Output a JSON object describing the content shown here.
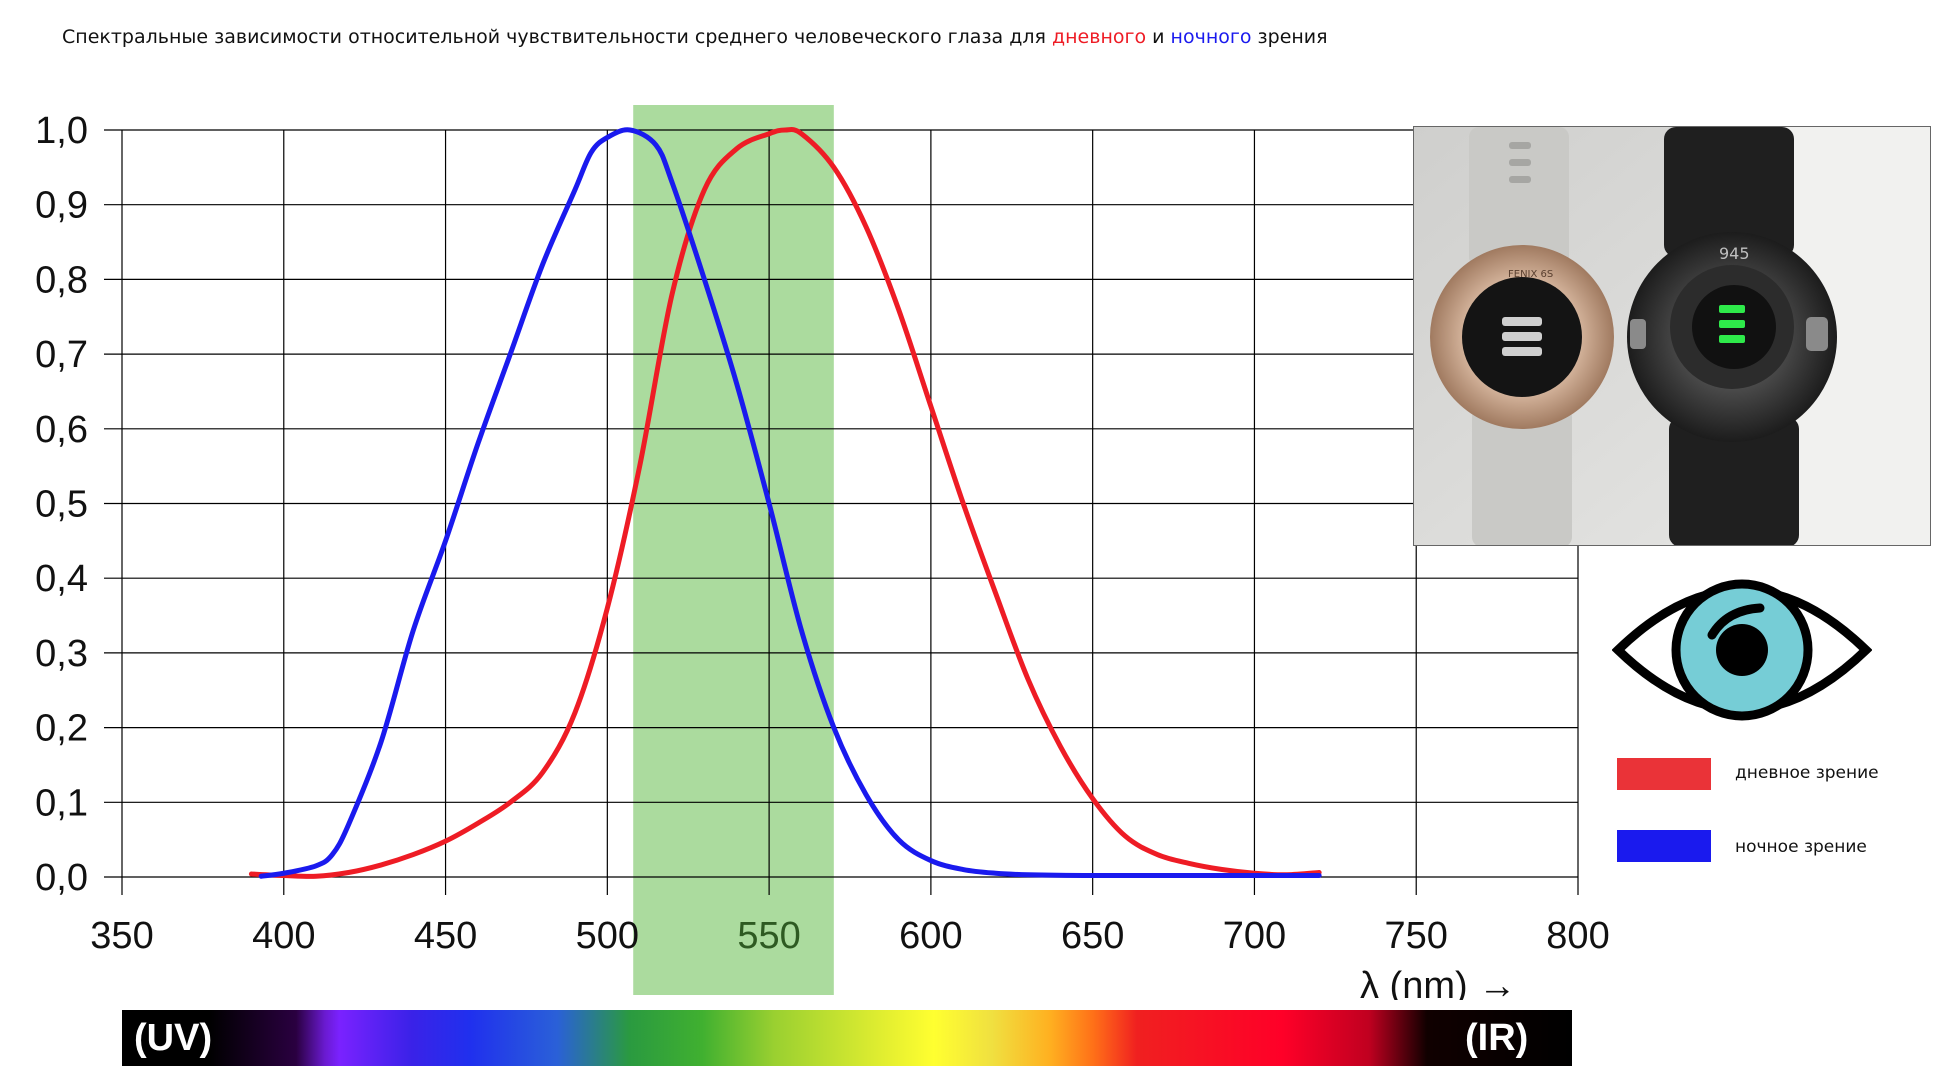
{
  "title": {
    "prefix": "Спектральные зависимости относительной чувствительности среднего человеческого глаза для ",
    "day_word": "дневного",
    "middle": " и ",
    "night_word": "ночного",
    "suffix": " зрения"
  },
  "colors": {
    "day": "#ee1c25",
    "night": "#1a1aee",
    "overlap": "#9a5a3a",
    "green_band": "#8fcf7e",
    "grid": "#000000"
  },
  "chart_data": {
    "type": "line",
    "xlabel": "λ (nm) →",
    "ylabel": "",
    "xlim": [
      350,
      800
    ],
    "ylim": [
      0,
      1
    ],
    "x_ticks": [
      "350",
      "400",
      "450",
      "500",
      "550",
      "600",
      "650",
      "700",
      "750",
      "800"
    ],
    "y_ticks": [
      "0,0",
      "0,1",
      "0,2",
      "0,3",
      "0,4",
      "0,5",
      "0,6",
      "0,7",
      "0,8",
      "0,9",
      "1,0"
    ],
    "grid": true,
    "highlight_band": [
      508,
      570
    ],
    "series": [
      {
        "name": "дневное зрение",
        "color": "#ee1c25",
        "x": [
          390,
          400,
          410,
          420,
          430,
          440,
          450,
          460,
          470,
          480,
          490,
          500,
          510,
          520,
          530,
          540,
          550,
          555,
          560,
          570,
          580,
          590,
          600,
          610,
          620,
          630,
          640,
          650,
          660,
          670,
          680,
          690,
          700,
          710,
          720
        ],
        "y": [
          0.004,
          0.002,
          0.001,
          0.006,
          0.016,
          0.03,
          0.048,
          0.072,
          0.1,
          0.14,
          0.22,
          0.36,
          0.55,
          0.78,
          0.92,
          0.975,
          0.995,
          1.0,
          0.995,
          0.95,
          0.87,
          0.76,
          0.63,
          0.5,
          0.38,
          0.265,
          0.175,
          0.105,
          0.055,
          0.03,
          0.018,
          0.01,
          0.005,
          0.003,
          0.006
        ]
      },
      {
        "name": "ночное зрение",
        "color": "#1a1aee",
        "x": [
          393,
          400,
          410,
          415,
          420,
          430,
          440,
          450,
          460,
          470,
          480,
          490,
          495,
          500,
          507,
          515,
          520,
          530,
          540,
          550,
          560,
          570,
          580,
          590,
          600,
          610,
          620,
          630,
          650,
          700,
          720
        ],
        "y": [
          0.001,
          0.005,
          0.015,
          0.03,
          0.07,
          0.18,
          0.33,
          0.45,
          0.58,
          0.7,
          0.82,
          0.92,
          0.97,
          0.99,
          1.0,
          0.98,
          0.93,
          0.8,
          0.66,
          0.5,
          0.33,
          0.2,
          0.11,
          0.05,
          0.022,
          0.01,
          0.005,
          0.003,
          0.002,
          0.002,
          0.002
        ]
      }
    ]
  },
  "legend": {
    "day_label": "дневное зрение",
    "night_label": "ночное зрение"
  },
  "spectrum": {
    "left_label": "(UV)",
    "right_label": "(IR)"
  },
  "photo": {
    "left_watch_text": "FENIX 6S",
    "right_watch_text": "945"
  }
}
